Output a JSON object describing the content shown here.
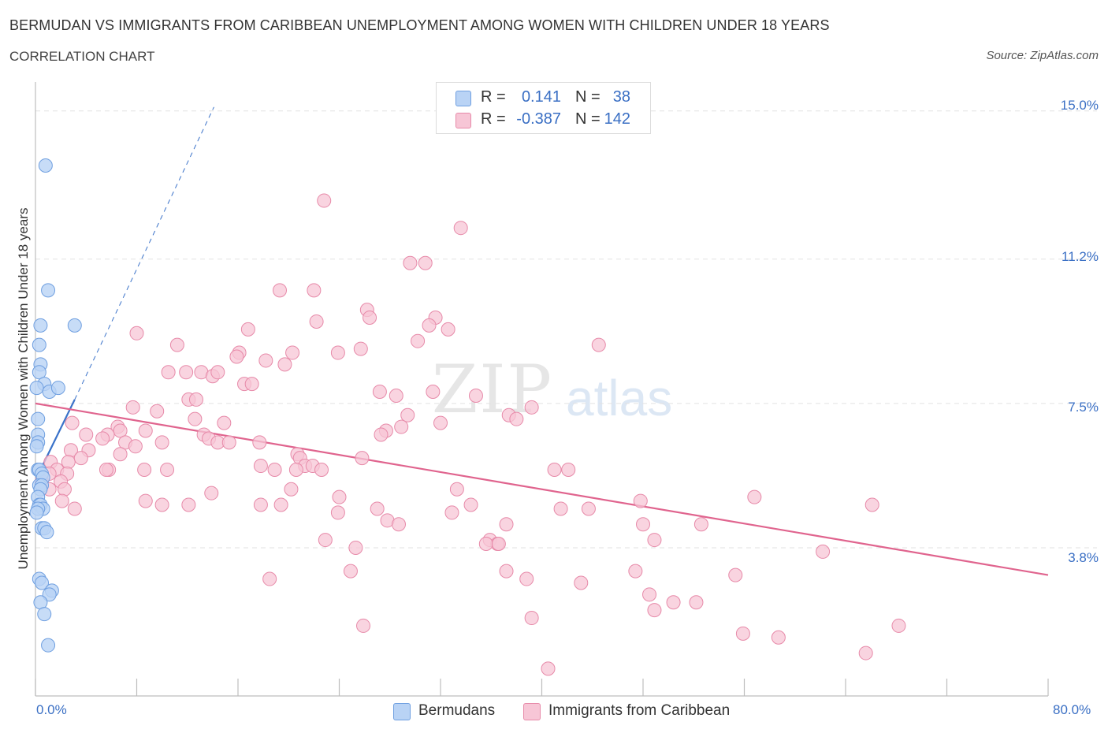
{
  "header": {
    "title": "BERMUDAN VS IMMIGRANTS FROM CARIBBEAN UNEMPLOYMENT AMONG WOMEN WITH CHILDREN UNDER 18 YEARS",
    "subtitle": "CORRELATION CHART",
    "source": "Source: ZipAtlas.com"
  },
  "watermark": {
    "zip": "ZIP",
    "atlas": "atlas"
  },
  "legend_top": {
    "rows": [
      {
        "r_label": "R =",
        "r_value": "0.141",
        "n_label": "N =",
        "n_value": "38"
      },
      {
        "r_label": "R =",
        "r_value": "-0.387",
        "n_label": "N =",
        "n_value": "142"
      }
    ]
  },
  "colors": {
    "bermudans_fill": "#b9d3f5",
    "bermudans_stroke": "#6f9fe0",
    "bermudans_line": "#3a72c9",
    "caribbean_fill": "#f7c6d6",
    "caribbean_stroke": "#e78aa9",
    "caribbean_line": "#e0648e",
    "tick_text": "#3a6fc4",
    "grid": "#e2e2e2"
  },
  "chart_data": {
    "type": "scatter",
    "title": "BERMUDAN VS IMMIGRANTS FROM CARIBBEAN UNEMPLOYMENT AMONG WOMEN WITH CHILDREN UNDER 18 YEARS",
    "subtitle": "CORRELATION CHART",
    "xlabel": "",
    "ylabel": "Unemployment Among Women with Children Under 18 years",
    "xlim": [
      0,
      80
    ],
    "ylim": [
      0,
      15.5
    ],
    "x_tick_labels": [
      "0.0%",
      "80.0%"
    ],
    "y_ticks": [
      3.8,
      7.5,
      11.2,
      15.0
    ],
    "y_tick_labels": [
      "3.8%",
      "7.5%",
      "11.2%",
      "15.0%"
    ],
    "grid": "horizontal dashed",
    "legend_placement": "bottom-center",
    "series": [
      {
        "name": "Bermudans",
        "R": 0.141,
        "N": 38,
        "trend": {
          "solid_x": [
            0.1,
            3.1
          ],
          "solid_y": [
            5.6,
            7.6
          ],
          "dashed_x": [
            3.1,
            14.1
          ],
          "dashed_y": [
            7.6,
            15.1
          ]
        },
        "points": [
          [
            0.8,
            13.6
          ],
          [
            1.0,
            10.4
          ],
          [
            3.1,
            9.5
          ],
          [
            0.4,
            9.5
          ],
          [
            0.3,
            9.0
          ],
          [
            0.4,
            8.5
          ],
          [
            0.3,
            8.3
          ],
          [
            0.7,
            8.0
          ],
          [
            0.1,
            7.9
          ],
          [
            1.1,
            7.8
          ],
          [
            1.8,
            7.9
          ],
          [
            0.2,
            7.1
          ],
          [
            0.2,
            6.7
          ],
          [
            0.2,
            6.5
          ],
          [
            0.1,
            6.4
          ],
          [
            0.2,
            5.8
          ],
          [
            0.3,
            5.8
          ],
          [
            0.5,
            5.7
          ],
          [
            0.6,
            5.6
          ],
          [
            0.3,
            5.4
          ],
          [
            0.5,
            5.4
          ],
          [
            0.4,
            5.3
          ],
          [
            0.2,
            5.1
          ],
          [
            0.3,
            4.9
          ],
          [
            0.4,
            4.9
          ],
          [
            0.6,
            4.8
          ],
          [
            0.2,
            4.8
          ],
          [
            0.1,
            4.7
          ],
          [
            0.5,
            4.3
          ],
          [
            0.7,
            4.3
          ],
          [
            0.9,
            4.2
          ],
          [
            0.3,
            3.0
          ],
          [
            0.5,
            2.9
          ],
          [
            1.3,
            2.7
          ],
          [
            1.1,
            2.6
          ],
          [
            0.4,
            2.4
          ],
          [
            0.7,
            2.1
          ],
          [
            1.0,
            1.3
          ]
        ]
      },
      {
        "name": "Immigrants from Caribbean",
        "R": -0.387,
        "N": 142,
        "trend": {
          "x": [
            0,
            80
          ],
          "y": [
            7.5,
            3.1
          ]
        },
        "points": [
          [
            22.8,
            12.7
          ],
          [
            33.6,
            12.0
          ],
          [
            29.6,
            11.1
          ],
          [
            30.8,
            11.1
          ],
          [
            19.3,
            10.4
          ],
          [
            22.0,
            10.4
          ],
          [
            26.2,
            9.9
          ],
          [
            26.4,
            9.7
          ],
          [
            22.2,
            9.6
          ],
          [
            31.6,
            9.7
          ],
          [
            31.1,
            9.5
          ],
          [
            32.6,
            9.4
          ],
          [
            8.0,
            9.3
          ],
          [
            16.8,
            9.4
          ],
          [
            11.2,
            9.0
          ],
          [
            30.2,
            9.1
          ],
          [
            44.5,
            9.0
          ],
          [
            25.7,
            8.9
          ],
          [
            23.9,
            8.8
          ],
          [
            20.3,
            8.8
          ],
          [
            16.1,
            8.8
          ],
          [
            15.9,
            8.7
          ],
          [
            18.2,
            8.6
          ],
          [
            19.7,
            8.5
          ],
          [
            10.5,
            8.3
          ],
          [
            11.9,
            8.3
          ],
          [
            13.1,
            8.3
          ],
          [
            14.0,
            8.2
          ],
          [
            14.4,
            8.3
          ],
          [
            16.5,
            8.0
          ],
          [
            17.1,
            8.0
          ],
          [
            27.2,
            7.8
          ],
          [
            28.5,
            7.7
          ],
          [
            31.4,
            7.8
          ],
          [
            34.8,
            7.7
          ],
          [
            12.1,
            7.6
          ],
          [
            12.7,
            7.6
          ],
          [
            7.7,
            7.4
          ],
          [
            9.6,
            7.3
          ],
          [
            39.2,
            7.4
          ],
          [
            29.4,
            7.2
          ],
          [
            37.4,
            7.2
          ],
          [
            38.0,
            7.1
          ],
          [
            12.6,
            7.1
          ],
          [
            14.9,
            7.0
          ],
          [
            2.9,
            7.0
          ],
          [
            32.0,
            7.0
          ],
          [
            28.9,
            6.9
          ],
          [
            27.7,
            6.8
          ],
          [
            6.5,
            6.9
          ],
          [
            8.7,
            6.8
          ],
          [
            6.7,
            6.8
          ],
          [
            27.3,
            6.7
          ],
          [
            5.7,
            6.7
          ],
          [
            4.0,
            6.7
          ],
          [
            13.3,
            6.7
          ],
          [
            5.3,
            6.6
          ],
          [
            10.0,
            6.5
          ],
          [
            13.7,
            6.6
          ],
          [
            14.4,
            6.5
          ],
          [
            15.3,
            6.5
          ],
          [
            17.7,
            6.5
          ],
          [
            7.1,
            6.5
          ],
          [
            7.9,
            6.4
          ],
          [
            4.2,
            6.3
          ],
          [
            2.8,
            6.3
          ],
          [
            6.7,
            6.2
          ],
          [
            20.7,
            6.2
          ],
          [
            20.9,
            6.1
          ],
          [
            25.8,
            6.1
          ],
          [
            2.6,
            6.0
          ],
          [
            1.2,
            6.0
          ],
          [
            3.6,
            6.1
          ],
          [
            21.3,
            5.9
          ],
          [
            17.8,
            5.9
          ],
          [
            18.9,
            5.8
          ],
          [
            21.9,
            5.9
          ],
          [
            22.6,
            5.8
          ],
          [
            20.6,
            5.8
          ],
          [
            10.4,
            5.8
          ],
          [
            8.6,
            5.8
          ],
          [
            5.8,
            5.8
          ],
          [
            5.6,
            5.8
          ],
          [
            1.7,
            5.8
          ],
          [
            2.5,
            5.7
          ],
          [
            1.1,
            5.7
          ],
          [
            41.0,
            5.8
          ],
          [
            42.1,
            5.8
          ],
          [
            2.0,
            5.5
          ],
          [
            0.5,
            5.5
          ],
          [
            1.1,
            5.3
          ],
          [
            2.3,
            5.3
          ],
          [
            20.2,
            5.3
          ],
          [
            33.3,
            5.3
          ],
          [
            13.9,
            5.2
          ],
          [
            24.0,
            5.1
          ],
          [
            56.8,
            5.1
          ],
          [
            47.8,
            5.0
          ],
          [
            66.1,
            4.9
          ],
          [
            2.1,
            5.0
          ],
          [
            8.7,
            5.0
          ],
          [
            10.0,
            4.9
          ],
          [
            12.1,
            4.9
          ],
          [
            17.8,
            4.9
          ],
          [
            19.4,
            4.9
          ],
          [
            34.4,
            4.9
          ],
          [
            3.1,
            4.8
          ],
          [
            27.0,
            4.8
          ],
          [
            41.5,
            4.8
          ],
          [
            43.7,
            4.8
          ],
          [
            32.9,
            4.7
          ],
          [
            23.9,
            4.7
          ],
          [
            27.8,
            4.5
          ],
          [
            28.7,
            4.4
          ],
          [
            37.2,
            4.4
          ],
          [
            48.0,
            4.4
          ],
          [
            52.6,
            4.4
          ],
          [
            22.9,
            4.0
          ],
          [
            35.9,
            4.0
          ],
          [
            36.5,
            3.9
          ],
          [
            48.9,
            4.0
          ],
          [
            25.3,
            3.8
          ],
          [
            35.6,
            3.9
          ],
          [
            36.6,
            3.9
          ],
          [
            62.2,
            3.7
          ],
          [
            24.9,
            3.2
          ],
          [
            37.2,
            3.2
          ],
          [
            47.4,
            3.2
          ],
          [
            38.8,
            3.0
          ],
          [
            55.3,
            3.1
          ],
          [
            18.5,
            3.0
          ],
          [
            43.1,
            2.9
          ],
          [
            48.5,
            2.6
          ],
          [
            50.4,
            2.4
          ],
          [
            52.2,
            2.4
          ],
          [
            48.9,
            2.2
          ],
          [
            39.2,
            2.0
          ],
          [
            25.9,
            1.8
          ],
          [
            68.2,
            1.8
          ],
          [
            55.9,
            1.6
          ],
          [
            58.7,
            1.5
          ],
          [
            65.6,
            1.1
          ],
          [
            40.5,
            0.7
          ]
        ]
      }
    ]
  },
  "legend_bottom": {
    "items": [
      "Bermudans",
      "Immigrants from Caribbean"
    ]
  }
}
